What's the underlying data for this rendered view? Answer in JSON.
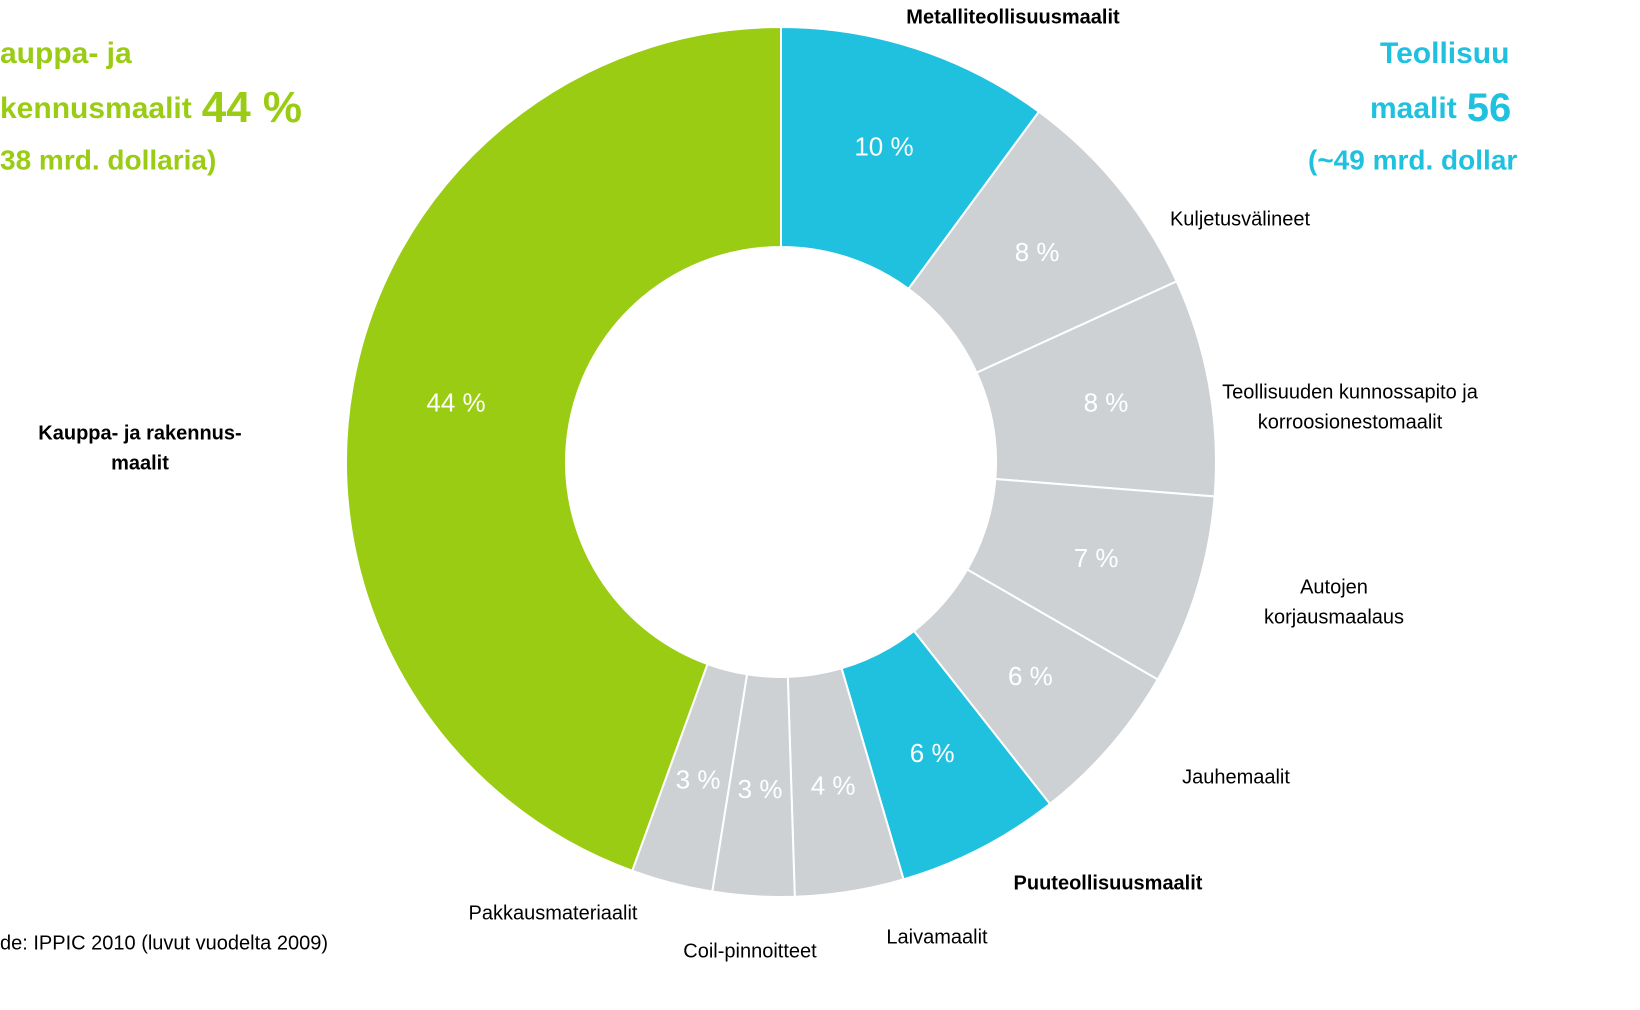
{
  "chart_data": {
    "type": "donut",
    "categories": [
      "Metalliteollisuusmaalit",
      "Kuljetusvälineet",
      [
        "Teollisuuden kunnossapito ja",
        "korroosionestomaalit"
      ],
      [
        "Autojen",
        "korjausmaalaus"
      ],
      "Jauhemaalit",
      "Puuteollisuusmaalit",
      "Laivamaalit",
      "Coil-pinnoitteet",
      "Pakkausmateriaalit",
      [
        "Kauppa- ja rakennus-",
        "maalit"
      ]
    ],
    "values": [
      10,
      8,
      8,
      7,
      6,
      6,
      4,
      3,
      3,
      44
    ],
    "value_labels": [
      "10 %",
      "8 %",
      "8 %",
      "7 %",
      "6 %",
      "6 %",
      "4 %",
      "3 %",
      "3 %",
      "44 %"
    ],
    "colors": [
      "#1fc1df",
      "#cdd1d4",
      "#cdd1d4",
      "#cdd1d4",
      "#cdd1d4",
      "#1fc1df",
      "#cdd1d4",
      "#cdd1d4",
      "#cdd1d4",
      "#99cc12"
    ],
    "left_heading": {
      "line1": "auppa- ja",
      "line2": "kennusmaalit",
      "share": "44 %",
      "line3": "38 mrd. dollaria)"
    },
    "right_heading": {
      "line1": "Teollisuu",
      "line2": "maalit",
      "share": "56",
      "line3": "(~49 mrd. dollar"
    },
    "source": "de: IPPIC 2010 (luvut vuodelta 2009)"
  }
}
